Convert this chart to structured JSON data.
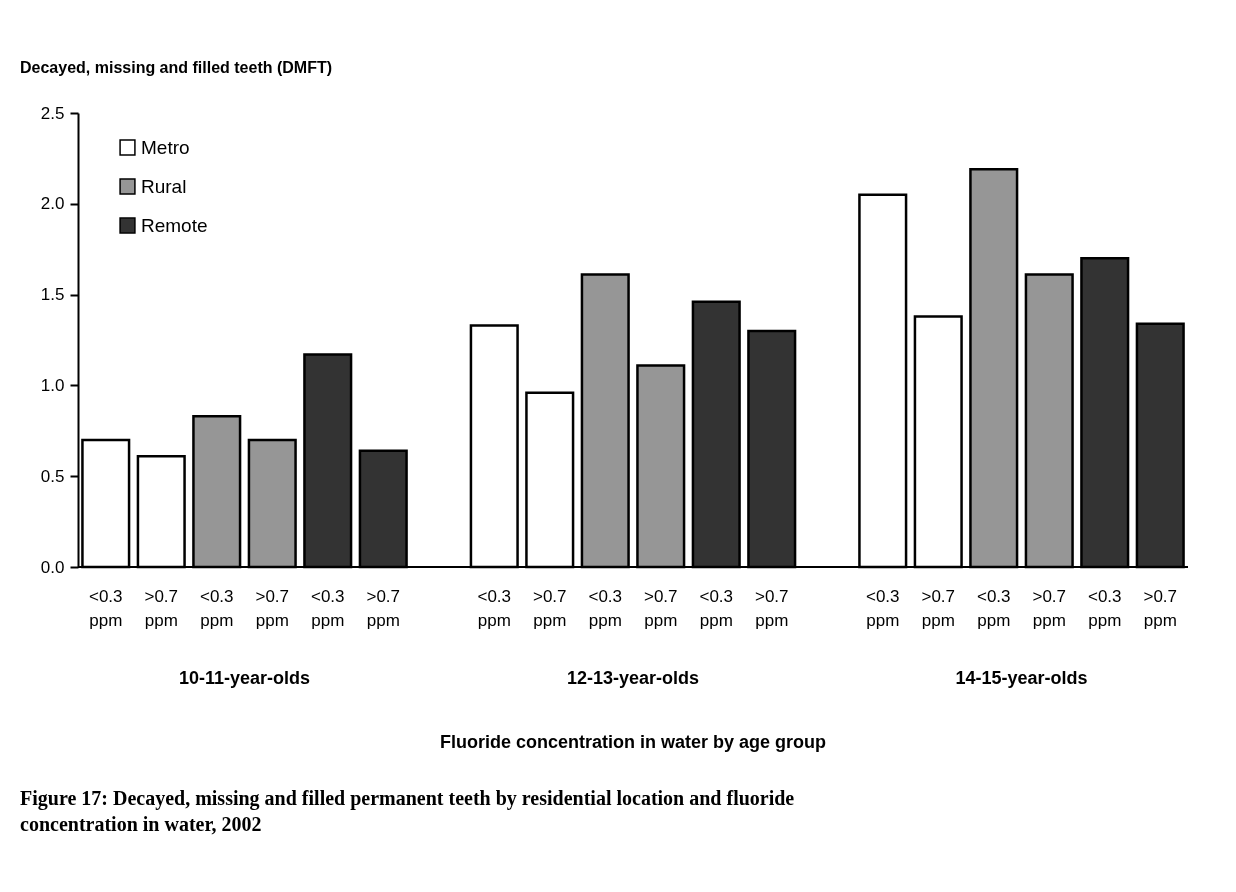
{
  "chart_data": {
    "type": "bar",
    "title": "Figure 17:   Decayed, missing and filled permanent teeth by residential location and fluoride concentration in water, 2002",
    "ylabel": "Decayed, missing and filled teeth (DMFT)",
    "annotations": [
      "10-11-year-olds",
      "12-13-year-olds",
      "14-15-year-olds",
      "Fluoride concentration in water by age group"
    ],
    "categories": [
      "<0.3 ppm",
      ">0.7 ppm",
      "<0.3 ppm",
      ">0.7 ppm",
      "<0.3 ppm",
      ">0.7 ppm",
      null,
      "<0.3 ppm",
      ">0.7 ppm",
      "<0.3 ppm",
      ">0.7 ppm",
      "<0.3 ppm",
      ">0.7 ppm",
      null,
      "<0.3 ppm",
      ">0.7 ppm",
      "<0.3 ppm",
      ">0.7 ppm",
      "<0.3 ppm",
      ">0.7 ppm"
    ],
    "series": [
      {
        "name": "Metro",
        "color": "#ffffff",
        "values": [
          0.7,
          0.61,
          null,
          null,
          null,
          null,
          null,
          1.33,
          0.96,
          null,
          null,
          null,
          null,
          null,
          2.05,
          1.38,
          null,
          null,
          null,
          null
        ]
      },
      {
        "name": "Rural",
        "color": "#969696",
        "values": [
          null,
          null,
          0.83,
          0.7,
          null,
          null,
          null,
          null,
          null,
          1.61,
          1.11,
          null,
          null,
          null,
          null,
          null,
          2.19,
          1.61,
          null,
          null
        ]
      },
      {
        "name": "Remote",
        "color": "#333333",
        "values": [
          null,
          null,
          null,
          null,
          1.17,
          0.64,
          null,
          null,
          null,
          null,
          null,
          1.46,
          1.3,
          null,
          null,
          null,
          null,
          null,
          1.7,
          1.34
        ]
      }
    ],
    "ylim": [
      0,
      2.5
    ],
    "yticks": [
      {
        "value": 0,
        "label": "0.0"
      },
      0.5,
      {
        "value": 1,
        "label": "1.0"
      },
      1.5,
      {
        "value": 2,
        "label": "2.0"
      },
      2.5
    ],
    "grid": false,
    "legend": "top left"
  }
}
